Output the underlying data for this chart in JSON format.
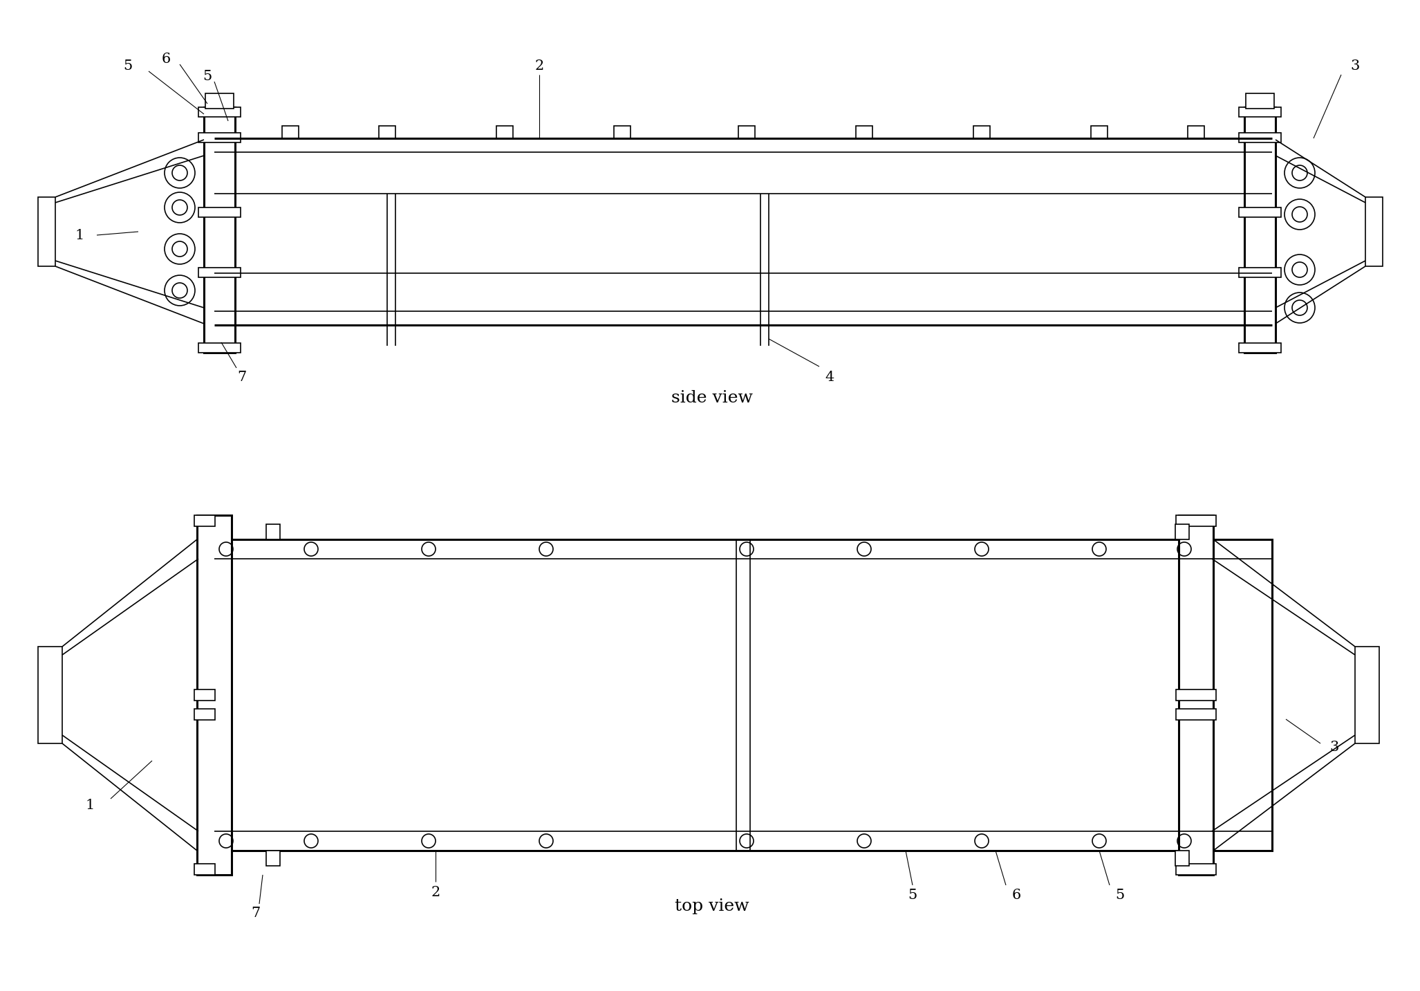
{
  "bg_color": "#ffffff",
  "lw": 1.2,
  "hlw": 2.2,
  "fig_width": 20.54,
  "fig_height": 14.33,
  "side_view_label": "side view",
  "top_view_label": "top view"
}
